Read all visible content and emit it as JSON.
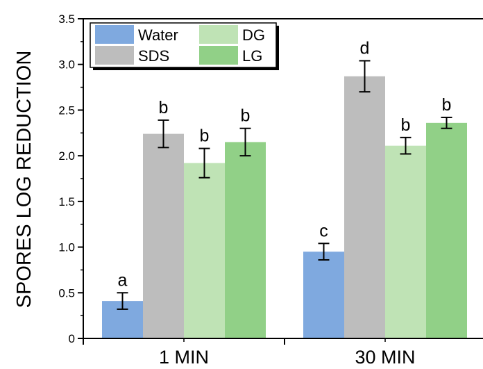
{
  "chart_data": {
    "type": "bar",
    "ylabel": "SPORES LOG REDUCTION",
    "xlabel": "",
    "categories": [
      "1 MIN",
      "30 MIN"
    ],
    "ylim": [
      0,
      3.5
    ],
    "yticks": [
      "0",
      "0.5",
      "1.0",
      "1.5",
      "2.0",
      "2.5",
      "3.0",
      "3.5"
    ],
    "series": [
      {
        "name": "Water",
        "color": "#7fa9df",
        "values": [
          0.41,
          0.95
        ],
        "errors": [
          0.09,
          0.09
        ],
        "significance": [
          "a",
          "c"
        ]
      },
      {
        "name": "SDS",
        "color": "#bdbdbd",
        "values": [
          2.24,
          2.87
        ],
        "errors": [
          0.15,
          0.17
        ],
        "significance": [
          "b",
          "d"
        ]
      },
      {
        "name": "DG",
        "color": "#bfe3b5",
        "values": [
          1.92,
          2.11
        ],
        "errors": [
          0.16,
          0.09
        ],
        "significance": [
          "b",
          "b"
        ]
      },
      {
        "name": "LG",
        "color": "#91d087",
        "values": [
          2.15,
          2.36
        ],
        "errors": [
          0.15,
          0.06
        ],
        "significance": [
          "b",
          "b"
        ]
      }
    ],
    "legend": {
      "position": "top-left",
      "order": [
        "Water",
        "DG",
        "SDS",
        "LG"
      ]
    },
    "grid": false
  }
}
